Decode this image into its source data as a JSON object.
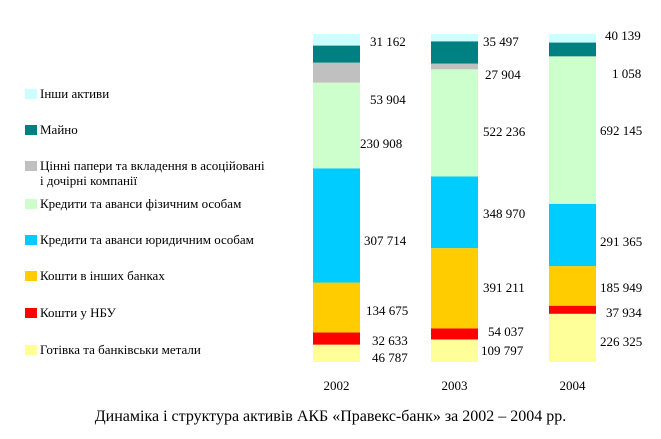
{
  "chart_data": {
    "type": "bar",
    "stacked": true,
    "normalized": true,
    "categories": [
      "2002",
      "2003",
      "2004"
    ],
    "series": [
      {
        "name": "Готівка та банківські метали",
        "color": "#FFFF99",
        "values": [
          46787,
          109797,
          226325
        ]
      },
      {
        "name": "Кошти у НБУ",
        "color": "#FF0000",
        "values": [
          32633,
          54037,
          37934
        ]
      },
      {
        "name": "Кошти в інших банках",
        "color": "#FFCC00",
        "values": [
          134675,
          391211,
          185949
        ]
      },
      {
        "name": "Кредити та аванси юридичним особам",
        "color": "#00CCFF",
        "values": [
          307714,
          348970,
          291365
        ]
      },
      {
        "name": "Кредити та аванси фізичним особам",
        "color": "#CCFFCC",
        "values": [
          230908,
          522236,
          692145
        ]
      },
      {
        "name": "Цінні папери та вкладення в асоційовані і дочірні компанії",
        "color": "#C0C0C0",
        "values": [
          53904,
          27904,
          1058
        ]
      },
      {
        "name": "Майно",
        "color": "#008080",
        "values": [
          null,
          null,
          null
        ]
      },
      {
        "name": "Інші активи",
        "color": "#CCFFFF",
        "values": [
          31162,
          35497,
          40139
        ]
      }
    ],
    "data_labels": [
      [
        "46 787",
        "32 633",
        "134 675",
        "307 714",
        "230 908",
        "53 904",
        "",
        "31 162"
      ],
      [
        "109 797",
        "54 037",
        "391 211",
        "348 970",
        "522 236",
        "27 904",
        "",
        "35 497"
      ],
      [
        "226 325",
        "37 934",
        "185 949",
        "291 365",
        "692 145",
        "1 058",
        "",
        "40 139"
      ]
    ],
    "title": "Динаміка і структура активів АКБ «Правекс-банк» за 2002 – 2004 рр.",
    "legend_position": "left",
    "grid": false
  },
  "legend": {
    "items": [
      {
        "label": "Інши активи",
        "color": "#CCFFFF"
      },
      {
        "label": "Майно",
        "color": "#008080"
      },
      {
        "label": "Цінні папери та вкладення в асоційовані і дочірні компанії",
        "color": "#C0C0C0"
      },
      {
        "label": "Кредити та аванси фізичним особам",
        "color": "#CCFFCC"
      },
      {
        "label": "Кредити та аванси юридичним особам",
        "color": "#00CCFF"
      },
      {
        "label": "Кошти в інших банках",
        "color": "#FFCC00"
      },
      {
        "label": "Кошти у НБУ",
        "color": "#FF0000"
      },
      {
        "label": "Готівка та банківськи метали",
        "color": "#FFFF99"
      }
    ]
  },
  "caption": "Динаміка і структура активів АКБ «Правекс-банк» за 2002 – 2004 рр."
}
